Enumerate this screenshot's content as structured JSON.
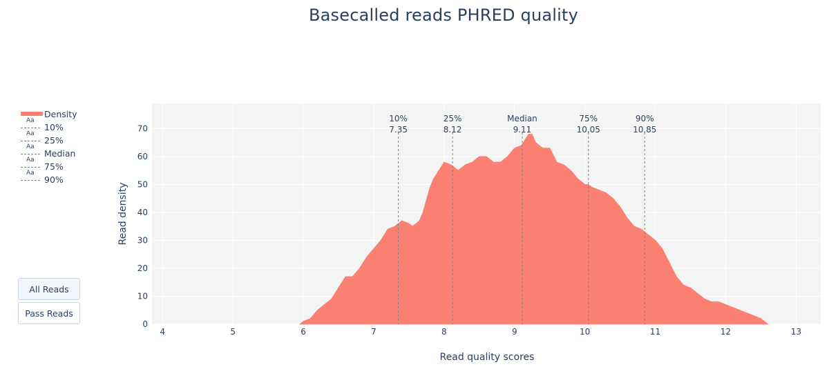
{
  "chart_data": {
    "type": "area",
    "title": "Basecalled reads PHRED quality",
    "xlabel": "Read quality scores",
    "ylabel": "Read density",
    "xlim": [
      3.85,
      13.35
    ],
    "ylim": [
      0,
      79
    ],
    "xticks": [
      4,
      5,
      6,
      7,
      8,
      9,
      10,
      11,
      12,
      13
    ],
    "yticks": [
      0,
      10,
      20,
      30,
      40,
      50,
      60,
      70
    ],
    "grid": true,
    "legend_position": "left",
    "colors": {
      "fill": "#fa8072",
      "plot_bg": "#f4f4f4",
      "grid": "#ffffff",
      "quantile_line": "#7f7f7f"
    },
    "series": [
      {
        "name": "Density",
        "x": [
          5.95,
          6.0,
          6.1,
          6.2,
          6.3,
          6.4,
          6.5,
          6.6,
          6.7,
          6.8,
          6.9,
          7.0,
          7.1,
          7.2,
          7.3,
          7.35,
          7.4,
          7.5,
          7.55,
          7.6,
          7.65,
          7.7,
          7.8,
          7.85,
          7.9,
          8.0,
          8.1,
          8.2,
          8.3,
          8.4,
          8.5,
          8.6,
          8.7,
          8.8,
          8.9,
          9.0,
          9.1,
          9.15,
          9.2,
          9.25,
          9.3,
          9.4,
          9.5,
          9.6,
          9.7,
          9.8,
          9.9,
          10.0,
          10.05,
          10.1,
          10.2,
          10.3,
          10.4,
          10.5,
          10.6,
          10.7,
          10.8,
          10.85,
          10.9,
          11.0,
          11.1,
          11.2,
          11.3,
          11.4,
          11.5,
          11.6,
          11.7,
          11.8,
          11.9,
          12.0,
          12.1,
          12.2,
          12.3,
          12.4,
          12.5,
          12.6
        ],
        "values": [
          0,
          1,
          2,
          5,
          7,
          9,
          13,
          17,
          17,
          20,
          24,
          27,
          30,
          34,
          35,
          36,
          37,
          36,
          35,
          36,
          37,
          40,
          49,
          52,
          54,
          58,
          57,
          55,
          57,
          58,
          60,
          60,
          58,
          58,
          60,
          63,
          64,
          66,
          68,
          68,
          65,
          63,
          63,
          58,
          57,
          55,
          52,
          50,
          50,
          49,
          48,
          47,
          45,
          42,
          38,
          35,
          34,
          33,
          32,
          30,
          27,
          22,
          17,
          14,
          13,
          11,
          9,
          8,
          8,
          7,
          6,
          5,
          4,
          3,
          2,
          0
        ]
      }
    ],
    "quantiles": [
      {
        "name": "10%",
        "label": "10%",
        "value": 7.35
      },
      {
        "name": "25%",
        "label": "25%",
        "value": 8.12
      },
      {
        "name": "Median",
        "label": "Median",
        "value": 9.11
      },
      {
        "name": "75%",
        "label": "75%",
        "value": 10.05
      },
      {
        "name": "90%",
        "label": "90%",
        "value": 10.85
      }
    ],
    "legend": [
      "Density",
      "10%",
      "25%",
      "Median",
      "75%",
      "90%"
    ],
    "legend_marker_text": "Aa"
  },
  "buttons": {
    "all_reads": "All Reads",
    "pass_reads": "Pass Reads"
  }
}
